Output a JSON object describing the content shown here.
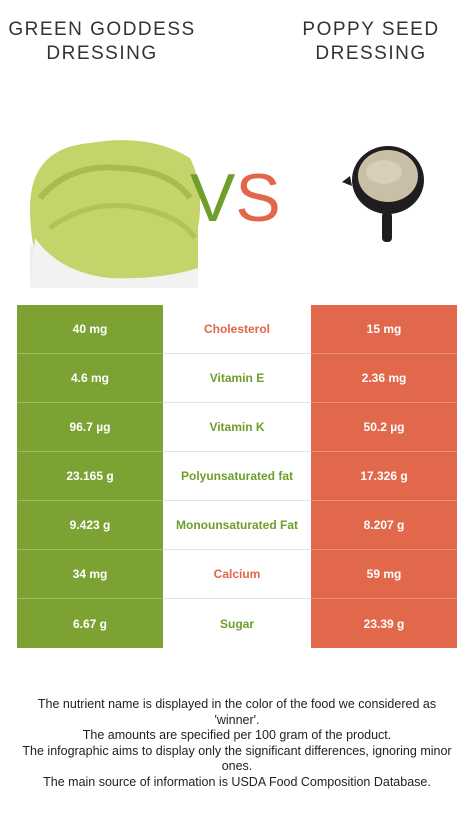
{
  "food_left": {
    "name": "GREEN GODDESS DRESSING",
    "color": "#7ca233"
  },
  "food_right": {
    "name": "POPPY SEED DRESSING",
    "color": "#e2684c"
  },
  "vs": {
    "v": "V",
    "s": "S"
  },
  "rows": [
    {
      "left": "40 mg",
      "nutrient": "Cholesterol",
      "right": "15 mg",
      "winner": "right"
    },
    {
      "left": "4.6 mg",
      "nutrient": "Vitamin E",
      "right": "2.36 mg",
      "winner": "left"
    },
    {
      "left": "96.7 µg",
      "nutrient": "Vitamin K",
      "right": "50.2 µg",
      "winner": "left"
    },
    {
      "left": "23.165 g",
      "nutrient": "Polyunsaturated fat",
      "right": "17.326 g",
      "winner": "left"
    },
    {
      "left": "9.423 g",
      "nutrient": "Monounsaturated Fat",
      "right": "8.207 g",
      "winner": "left"
    },
    {
      "left": "34 mg",
      "nutrient": "Calcium",
      "right": "59 mg",
      "winner": "right"
    },
    {
      "left": "6.67 g",
      "nutrient": "Sugar",
      "right": "23.39 g",
      "winner": "left"
    }
  ],
  "footer": {
    "line1": "The nutrient name is displayed in the color of the food we considered as 'winner'.",
    "line2": "The amounts are specified per 100 gram of the product.",
    "line3": "The infographic aims to display only the significant differences, ignoring minor ones.",
    "line4": "The main source of information is USDA Food Composition Database."
  }
}
